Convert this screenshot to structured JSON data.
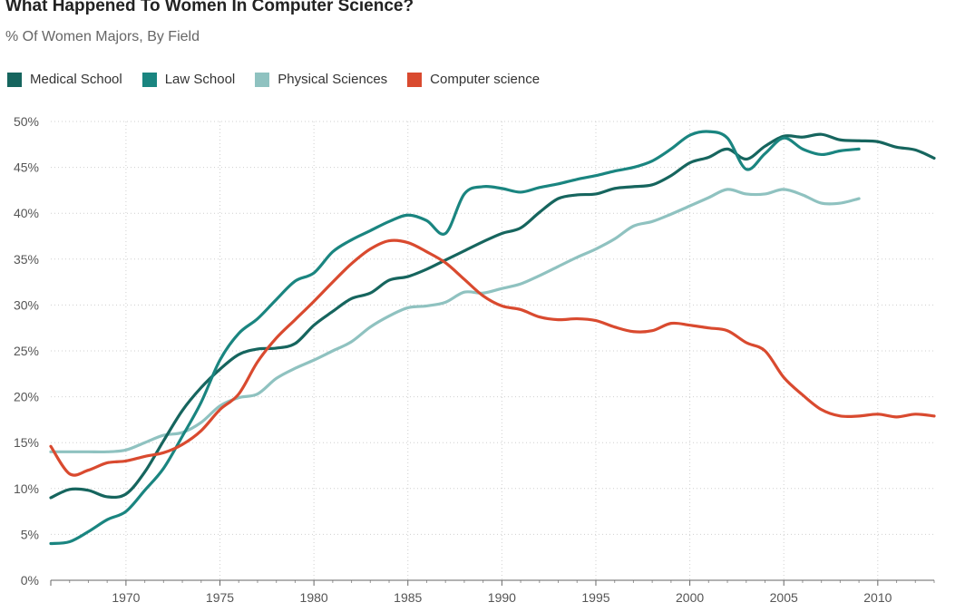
{
  "chart_data": {
    "type": "line",
    "title": "What Happened To Women In Computer Science?",
    "subtitle": "% Of Women Majors, By Field",
    "xlim": [
      1966,
      2013
    ],
    "ylim": [
      0,
      50
    ],
    "x_ticks": [
      1970,
      1975,
      1980,
      1985,
      1990,
      1995,
      2000,
      2005,
      2010
    ],
    "y_ticks": [
      0,
      5,
      10,
      15,
      20,
      25,
      30,
      35,
      40,
      45,
      50
    ],
    "y_tick_suffix": "%",
    "grid": true,
    "legend_position": "top-left",
    "series": [
      {
        "name": "Medical School",
        "color": "#16655e",
        "points": [
          [
            1966,
            9.0
          ],
          [
            1967,
            9.9
          ],
          [
            1968,
            9.8
          ],
          [
            1969,
            9.1
          ],
          [
            1970,
            9.4
          ],
          [
            1971,
            11.8
          ],
          [
            1972,
            15.2
          ],
          [
            1973,
            18.5
          ],
          [
            1974,
            21.0
          ],
          [
            1975,
            23.0
          ],
          [
            1976,
            24.6
          ],
          [
            1977,
            25.2
          ],
          [
            1978,
            25.3
          ],
          [
            1979,
            25.8
          ],
          [
            1980,
            27.8
          ],
          [
            1981,
            29.3
          ],
          [
            1982,
            30.7
          ],
          [
            1983,
            31.3
          ],
          [
            1984,
            32.7
          ],
          [
            1985,
            33.1
          ],
          [
            1986,
            33.9
          ],
          [
            1987,
            34.9
          ],
          [
            1988,
            35.9
          ],
          [
            1989,
            36.9
          ],
          [
            1990,
            37.8
          ],
          [
            1991,
            38.4
          ],
          [
            1992,
            40.1
          ],
          [
            1993,
            41.6
          ],
          [
            1994,
            42.0
          ],
          [
            1995,
            42.1
          ],
          [
            1996,
            42.7
          ],
          [
            1997,
            42.9
          ],
          [
            1998,
            43.1
          ],
          [
            1999,
            44.1
          ],
          [
            2000,
            45.5
          ],
          [
            2001,
            46.1
          ],
          [
            2002,
            47.0
          ],
          [
            2003,
            45.9
          ],
          [
            2004,
            47.3
          ],
          [
            2005,
            48.4
          ],
          [
            2006,
            48.3
          ],
          [
            2007,
            48.6
          ],
          [
            2008,
            48.0
          ],
          [
            2009,
            47.9
          ],
          [
            2010,
            47.8
          ],
          [
            2011,
            47.2
          ],
          [
            2012,
            46.9
          ],
          [
            2013,
            46.0
          ]
        ]
      },
      {
        "name": "Law School",
        "color": "#1a8580",
        "points": [
          [
            1966,
            4.0
          ],
          [
            1967,
            4.2
          ],
          [
            1968,
            5.3
          ],
          [
            1969,
            6.6
          ],
          [
            1970,
            7.5
          ],
          [
            1971,
            9.8
          ],
          [
            1972,
            12.2
          ],
          [
            1973,
            15.7
          ],
          [
            1974,
            19.4
          ],
          [
            1975,
            24.0
          ],
          [
            1976,
            26.9
          ],
          [
            1977,
            28.5
          ],
          [
            1978,
            30.6
          ],
          [
            1979,
            32.6
          ],
          [
            1980,
            33.5
          ],
          [
            1981,
            35.8
          ],
          [
            1982,
            37.1
          ],
          [
            1983,
            38.1
          ],
          [
            1984,
            39.1
          ],
          [
            1985,
            39.8
          ],
          [
            1986,
            39.2
          ],
          [
            1987,
            37.8
          ],
          [
            1988,
            42.1
          ],
          [
            1989,
            42.9
          ],
          [
            1990,
            42.7
          ],
          [
            1991,
            42.3
          ],
          [
            1992,
            42.8
          ],
          [
            1993,
            43.2
          ],
          [
            1994,
            43.7
          ],
          [
            1995,
            44.1
          ],
          [
            1996,
            44.6
          ],
          [
            1997,
            45.0
          ],
          [
            1998,
            45.7
          ],
          [
            1999,
            47.0
          ],
          [
            2000,
            48.5
          ],
          [
            2001,
            48.9
          ],
          [
            2002,
            48.2
          ],
          [
            2003,
            44.8
          ],
          [
            2004,
            46.5
          ],
          [
            2005,
            48.2
          ],
          [
            2006,
            47.0
          ],
          [
            2007,
            46.4
          ],
          [
            2008,
            46.8
          ],
          [
            2009,
            47.0
          ]
        ]
      },
      {
        "name": "Physical Sciences",
        "color": "#8fc2c0",
        "points": [
          [
            1966,
            14.0
          ],
          [
            1967,
            14.0
          ],
          [
            1968,
            14.0
          ],
          [
            1969,
            14.0
          ],
          [
            1970,
            14.2
          ],
          [
            1971,
            15.0
          ],
          [
            1972,
            15.8
          ],
          [
            1973,
            16.1
          ],
          [
            1974,
            17.2
          ],
          [
            1975,
            19.0
          ],
          [
            1976,
            19.9
          ],
          [
            1977,
            20.3
          ],
          [
            1978,
            22.0
          ],
          [
            1979,
            23.1
          ],
          [
            1980,
            24.0
          ],
          [
            1981,
            25.0
          ],
          [
            1982,
            26.0
          ],
          [
            1983,
            27.6
          ],
          [
            1984,
            28.8
          ],
          [
            1985,
            29.7
          ],
          [
            1986,
            29.9
          ],
          [
            1987,
            30.3
          ],
          [
            1988,
            31.4
          ],
          [
            1989,
            31.3
          ],
          [
            1990,
            31.8
          ],
          [
            1991,
            32.3
          ],
          [
            1992,
            33.2
          ],
          [
            1993,
            34.2
          ],
          [
            1994,
            35.2
          ],
          [
            1995,
            36.1
          ],
          [
            1996,
            37.2
          ],
          [
            1997,
            38.6
          ],
          [
            1998,
            39.1
          ],
          [
            1999,
            39.9
          ],
          [
            2000,
            40.8
          ],
          [
            2001,
            41.7
          ],
          [
            2002,
            42.6
          ],
          [
            2003,
            42.1
          ],
          [
            2004,
            42.1
          ],
          [
            2005,
            42.6
          ],
          [
            2006,
            42.0
          ],
          [
            2007,
            41.1
          ],
          [
            2008,
            41.1
          ],
          [
            2009,
            41.6
          ]
        ]
      },
      {
        "name": "Computer science",
        "color": "#d94a2f",
        "points": [
          [
            1966,
            14.6
          ],
          [
            1967,
            11.6
          ],
          [
            1968,
            12.0
          ],
          [
            1969,
            12.8
          ],
          [
            1970,
            13.0
          ],
          [
            1971,
            13.5
          ],
          [
            1972,
            13.9
          ],
          [
            1973,
            14.8
          ],
          [
            1974,
            16.3
          ],
          [
            1975,
            18.6
          ],
          [
            1976,
            20.3
          ],
          [
            1977,
            23.8
          ],
          [
            1978,
            26.4
          ],
          [
            1979,
            28.4
          ],
          [
            1980,
            30.4
          ],
          [
            1981,
            32.5
          ],
          [
            1982,
            34.5
          ],
          [
            1983,
            36.1
          ],
          [
            1984,
            37.0
          ],
          [
            1985,
            36.8
          ],
          [
            1986,
            35.8
          ],
          [
            1987,
            34.6
          ],
          [
            1988,
            32.8
          ],
          [
            1989,
            31.0
          ],
          [
            1990,
            29.9
          ],
          [
            1991,
            29.5
          ],
          [
            1992,
            28.7
          ],
          [
            1993,
            28.4
          ],
          [
            1994,
            28.5
          ],
          [
            1995,
            28.3
          ],
          [
            1996,
            27.6
          ],
          [
            1997,
            27.1
          ],
          [
            1998,
            27.2
          ],
          [
            1999,
            28.0
          ],
          [
            2000,
            27.8
          ],
          [
            2001,
            27.5
          ],
          [
            2002,
            27.2
          ],
          [
            2003,
            25.9
          ],
          [
            2004,
            25.0
          ],
          [
            2005,
            22.1
          ],
          [
            2006,
            20.2
          ],
          [
            2007,
            18.6
          ],
          [
            2008,
            17.9
          ],
          [
            2009,
            17.9
          ],
          [
            2010,
            18.1
          ],
          [
            2011,
            17.8
          ],
          [
            2012,
            18.1
          ],
          [
            2013,
            17.9
          ]
        ]
      }
    ]
  }
}
